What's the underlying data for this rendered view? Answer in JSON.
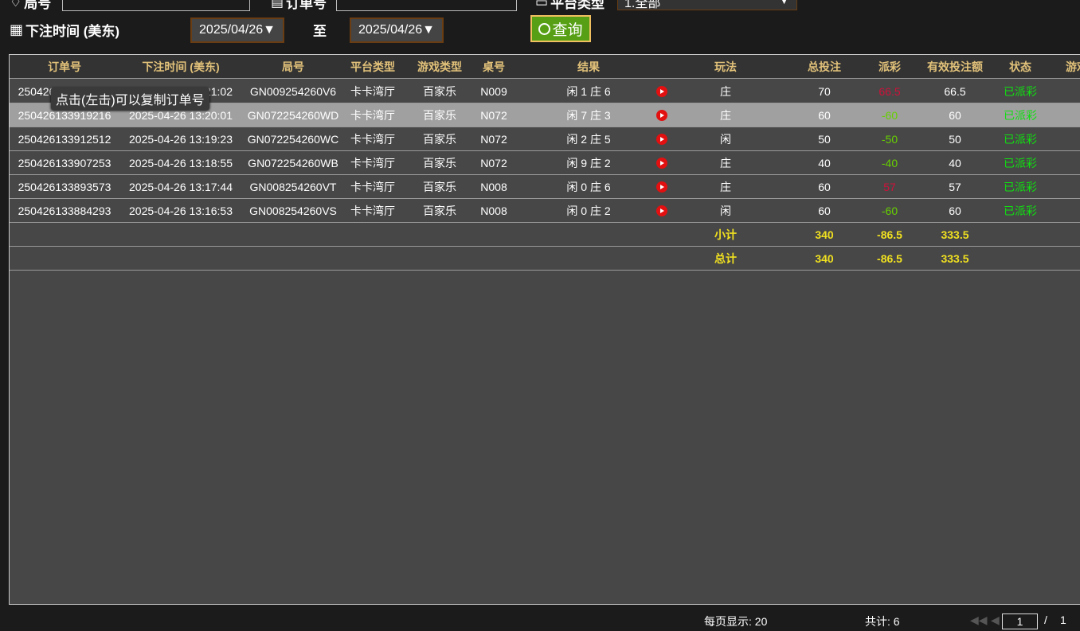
{
  "filters": {
    "field1_label": "局号",
    "field2_label": "订单号",
    "field3_label": "平台类型",
    "platform_select": "1.全部",
    "time_label": "下注时间 (美东)",
    "date_from": "2025/04/26",
    "to_label": "至",
    "date_to": "2025/04/26",
    "query_button": "查询"
  },
  "table": {
    "headers": [
      "订单号",
      "下注时间 (美东)",
      "局号",
      "平台类型",
      "游戏类型",
      "桌号",
      "结果",
      "玩法",
      "总投注",
      "派彩",
      "有效投注额",
      "状态",
      "游戏"
    ],
    "rows": [
      {
        "order": "250426133928282",
        "time": "2025-04-26 13:21:02",
        "round": "GN009254260V6",
        "platform": "卡卡湾厅",
        "game": "百家乐",
        "table": "N009",
        "result": "闲 1 庄 6",
        "play": "庄",
        "bet": "70",
        "payout": "66.5",
        "valid": "66.5",
        "status": "已派彩"
      },
      {
        "order": "250426133919216",
        "time": "2025-04-26 13:20:01",
        "round": "GN072254260WD",
        "platform": "卡卡湾厅",
        "game": "百家乐",
        "table": "N072",
        "result": "闲 7 庄 3",
        "play": "庄",
        "bet": "60",
        "payout": "-60",
        "valid": "60",
        "status": "已派彩"
      },
      {
        "order": "250426133912512",
        "time": "2025-04-26 13:19:23",
        "round": "GN072254260WC",
        "platform": "卡卡湾厅",
        "game": "百家乐",
        "table": "N072",
        "result": "闲 2 庄 5",
        "play": "闲",
        "bet": "50",
        "payout": "-50",
        "valid": "50",
        "status": "已派彩"
      },
      {
        "order": "250426133907253",
        "time": "2025-04-26 13:18:55",
        "round": "GN072254260WB",
        "platform": "卡卡湾厅",
        "game": "百家乐",
        "table": "N072",
        "result": "闲 9 庄 2",
        "play": "庄",
        "bet": "40",
        "payout": "-40",
        "valid": "40",
        "status": "已派彩"
      },
      {
        "order": "250426133893573",
        "time": "2025-04-26 13:17:44",
        "round": "GN008254260VT",
        "platform": "卡卡湾厅",
        "game": "百家乐",
        "table": "N008",
        "result": "闲 0 庄 6",
        "play": "庄",
        "bet": "60",
        "payout": "57",
        "valid": "57",
        "status": "已派彩"
      },
      {
        "order": "250426133884293",
        "time": "2025-04-26 13:16:53",
        "round": "GN008254260VS",
        "platform": "卡卡湾厅",
        "game": "百家乐",
        "table": "N008",
        "result": "闲 0 庄 2",
        "play": "闲",
        "bet": "60",
        "payout": "-60",
        "valid": "60",
        "status": "已派彩"
      }
    ],
    "subtotal": {
      "label": "小计",
      "bet": "340",
      "payout": "-86.5",
      "valid": "333.5"
    },
    "total": {
      "label": "总计",
      "bet": "340",
      "payout": "-86.5",
      "valid": "333.5"
    }
  },
  "tooltip": "点击(左击)可以复制订单号",
  "footer": {
    "page_size": "每页显示: 20",
    "total": "共计: 6",
    "page": "1",
    "of": "/",
    "pages": "1"
  },
  "colors": {
    "positive": "#d0103a",
    "negative": "#66d000",
    "status": "#10e010",
    "header_text": "#e2c27a",
    "total_text": "#f0e020"
  }
}
